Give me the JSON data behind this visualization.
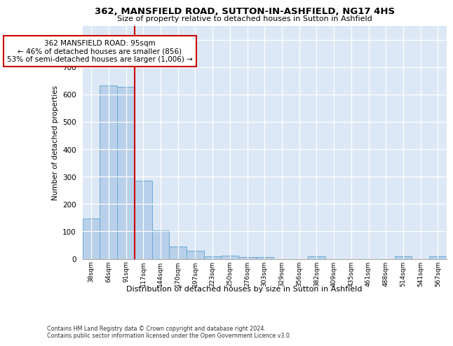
{
  "title": "362, MANSFIELD ROAD, SUTTON-IN-ASHFIELD, NG17 4HS",
  "subtitle": "Size of property relative to detached houses in Sutton in Ashfield",
  "xlabel": "Distribution of detached houses by size in Sutton in Ashfield",
  "ylabel": "Number of detached properties",
  "categories": [
    "38sqm",
    "64sqm",
    "91sqm",
    "117sqm",
    "144sqm",
    "170sqm",
    "197sqm",
    "223sqm",
    "250sqm",
    "276sqm",
    "303sqm",
    "329sqm",
    "356sqm",
    "382sqm",
    "409sqm",
    "435sqm",
    "461sqm",
    "488sqm",
    "514sqm",
    "541sqm",
    "567sqm"
  ],
  "values": [
    148,
    632,
    628,
    285,
    103,
    46,
    30,
    10,
    11,
    6,
    6,
    0,
    0,
    8,
    0,
    0,
    0,
    0,
    8,
    0,
    8
  ],
  "bar_color": "#b8d0ea",
  "bar_edge_color": "#6aaad4",
  "vline_x_idx": 2,
  "vline_color": "#cc0000",
  "annotation_line1": "362 MANSFIELD ROAD: 95sqm",
  "annotation_line2": "← 46% of detached houses are smaller (856)",
  "annotation_line3": "53% of semi-detached houses are larger (1,006) →",
  "annotation_box_color": "#ffffff",
  "annotation_box_edge": "#cc0000",
  "ylim": [
    0,
    850
  ],
  "yticks": [
    0,
    100,
    200,
    300,
    400,
    500,
    600,
    700,
    800
  ],
  "bg_color": "#dce8f5",
  "footer": "Contains HM Land Registry data © Crown copyright and database right 2024.\nContains public sector information licensed under the Open Government Licence v3.0."
}
